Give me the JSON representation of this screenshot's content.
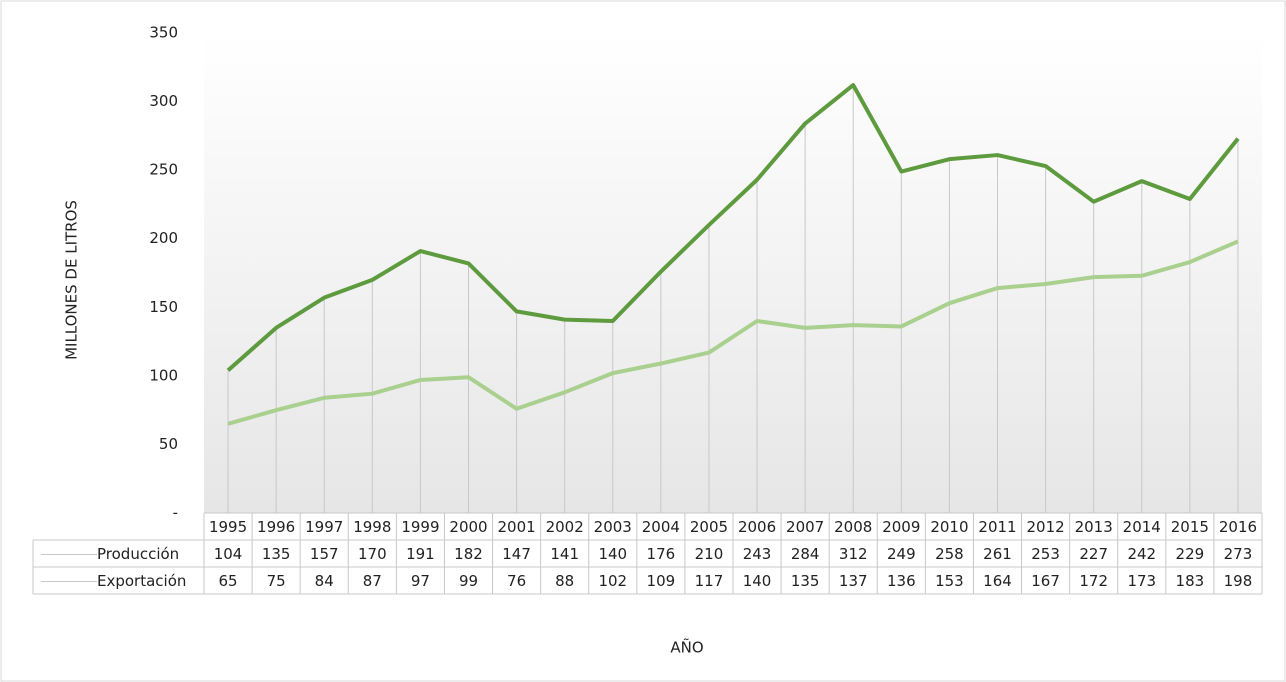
{
  "chart_data": {
    "type": "line",
    "y_label": "MILLONES DE LITROS",
    "x_label": "AÑO",
    "categories": [
      "1995",
      "1996",
      "1997",
      "1998",
      "1999",
      "2000",
      "2001",
      "2002",
      "2003",
      "2004",
      "2005",
      "2006",
      "2007",
      "2008",
      "2009",
      "2010",
      "2011",
      "2012",
      "2013",
      "2014",
      "2015",
      "2016"
    ],
    "series": [
      {
        "name": "Producción",
        "color": "#5e9a3e",
        "values": [
          104,
          135,
          157,
          170,
          191,
          182,
          147,
          141,
          140,
          176,
          210,
          243,
          284,
          312,
          249,
          258,
          261,
          253,
          227,
          242,
          229,
          273
        ]
      },
      {
        "name": "Exportación",
        "color": "#a9d08e",
        "values": [
          65,
          75,
          84,
          87,
          97,
          99,
          76,
          88,
          102,
          109,
          117,
          140,
          135,
          137,
          136,
          153,
          164,
          167,
          172,
          173,
          183,
          198
        ]
      }
    ],
    "ylim": [
      0,
      350
    ],
    "yticks": [
      {
        "value": 0,
        "label": "-"
      },
      50,
      100,
      150,
      200,
      250,
      300,
      350
    ],
    "drop_lines": true,
    "data_table": true
  }
}
